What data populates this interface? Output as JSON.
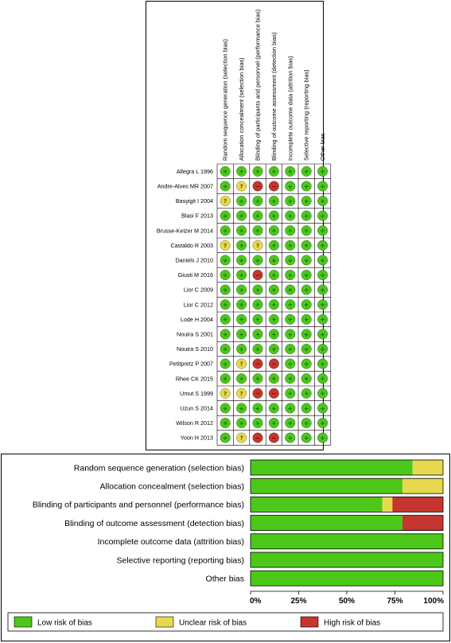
{
  "chart_data": [
    {
      "type": "heatmap",
      "domains": [
        "Random sequence generation (selection bias)",
        "Allocation concealment (selection bias)",
        "Blinding of participants and personnel (performance bias)",
        "Blinding of outcome assessment (detection bias)",
        "Incomplete outcome data (attrition bias)",
        "Selective reporting (reporting bias)",
        "Other bias"
      ],
      "studies": [
        "Allegra L 1996",
        "Andre-Alves MR 2007",
        "Basyigit I 2004",
        "Blasi F 2013",
        "Brusse-Keizer M 2014",
        "Castaldo R 2003",
        "Daniels J 2010",
        "Giusti M 2016",
        "Lior C 2009",
        "Lior C 2012",
        "Lode H 2004",
        "Nouira S 2001",
        "Nouira S 2010",
        "Petitpretz P 2007",
        "Rhee CK 2015",
        "Umut S 1999",
        "Uzun S 2014",
        "Wilson R 2012",
        "Yoon H 2013"
      ],
      "ratings": [
        [
          "low",
          "low",
          "low",
          "low",
          "low",
          "low",
          "low"
        ],
        [
          "low",
          "unclear",
          "high",
          "high",
          "low",
          "low",
          "low"
        ],
        [
          "unclear",
          "low",
          "low",
          "low",
          "low",
          "low",
          "low"
        ],
        [
          "low",
          "low",
          "low",
          "low",
          "low",
          "low",
          "low"
        ],
        [
          "low",
          "low",
          "low",
          "low",
          "low",
          "low",
          "low"
        ],
        [
          "unclear",
          "low",
          "unclear",
          "low",
          "low",
          "low",
          "low"
        ],
        [
          "low",
          "low",
          "low",
          "low",
          "low",
          "low",
          "low"
        ],
        [
          "low",
          "low",
          "high",
          "low",
          "low",
          "low",
          "low"
        ],
        [
          "low",
          "low",
          "low",
          "low",
          "low",
          "low",
          "low"
        ],
        [
          "low",
          "low",
          "low",
          "low",
          "low",
          "low",
          "low"
        ],
        [
          "low",
          "low",
          "low",
          "low",
          "low",
          "low",
          "low"
        ],
        [
          "low",
          "low",
          "low",
          "low",
          "low",
          "low",
          "low"
        ],
        [
          "low",
          "low",
          "low",
          "low",
          "low",
          "low",
          "low"
        ],
        [
          "low",
          "unclear",
          "high",
          "high",
          "low",
          "low",
          "low"
        ],
        [
          "low",
          "low",
          "low",
          "low",
          "low",
          "low",
          "low"
        ],
        [
          "unclear",
          "unclear",
          "high",
          "high",
          "low",
          "low",
          "low"
        ],
        [
          "low",
          "low",
          "low",
          "low",
          "low",
          "low",
          "low"
        ],
        [
          "low",
          "low",
          "low",
          "low",
          "low",
          "low",
          "low"
        ],
        [
          "low",
          "unclear",
          "high",
          "high",
          "low",
          "low",
          "low"
        ]
      ],
      "symbols": {
        "low": "+",
        "unclear": "?",
        "high": "−"
      }
    },
    {
      "type": "bar",
      "orientation": "horizontal",
      "stacked": true,
      "categories": [
        "Random sequence generation (selection bias)",
        "Allocation concealment (selection bias)",
        "Blinding of participants and personnel (performance bias)",
        "Blinding of outcome assessment (detection bias)",
        "Incomplete outcome data (attrition bias)",
        "Selective reporting (reporting bias)",
        "Other bias"
      ],
      "series": [
        {
          "name": "Low risk of bias",
          "values": [
            84.2,
            78.9,
            68.4,
            78.9,
            100,
            100,
            100
          ]
        },
        {
          "name": "Unclear risk of bias",
          "values": [
            15.8,
            21.1,
            5.3,
            0,
            0,
            0,
            0
          ]
        },
        {
          "name": "High risk of bias",
          "values": [
            0,
            0,
            26.3,
            21.1,
            0,
            0,
            0
          ]
        }
      ],
      "xlim": [
        0,
        100
      ],
      "x_ticks": [
        "0%",
        "25%",
        "50%",
        "75%",
        "100%"
      ],
      "legend_position": "bottom"
    }
  ],
  "colors": {
    "low": "#4dc71a",
    "unclear": "#e6d94d",
    "high": "#c4362e",
    "symbol_low": "#1a6a10",
    "symbol_unclear": "#5a4a00",
    "symbol_high": "#6a1010"
  }
}
